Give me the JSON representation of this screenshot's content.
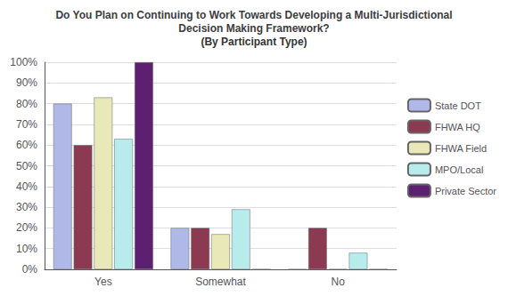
{
  "chart_data": {
    "type": "bar",
    "title": "Do You Plan on Continuing to Work Towards Developing a Multi-Jurisdictional\nDecision Making Framework?",
    "subtitle": "(By Participant Type)",
    "categories": [
      "Yes",
      "Somewhat",
      "No"
    ],
    "series": [
      {
        "name": "State DOT",
        "color": "#b0b8e8",
        "values": [
          80,
          20,
          0
        ]
      },
      {
        "name": "FHWA HQ",
        "color": "#8b3a52",
        "values": [
          60,
          20,
          20
        ]
      },
      {
        "name": "FHWA Field",
        "color": "#e8e8b8",
        "values": [
          83,
          17,
          0
        ]
      },
      {
        "name": "MPO/Local",
        "color": "#b8ecec",
        "values": [
          63,
          29,
          8
        ]
      },
      {
        "name": "Private Sector",
        "color": "#5c2070",
        "values": [
          100,
          0,
          0
        ]
      }
    ],
    "ylim": [
      0,
      100
    ],
    "yticks": [
      {
        "value": 0,
        "label": "0%"
      },
      {
        "value": 10,
        "label": "10%"
      },
      {
        "value": 20,
        "label": "20%"
      },
      {
        "value": 30,
        "label": "30%"
      },
      {
        "value": 40,
        "label": "40%"
      },
      {
        "value": 50,
        "label": "50%"
      },
      {
        "value": 60,
        "label": "60%"
      },
      {
        "value": 70,
        "label": "70%"
      },
      {
        "value": 80,
        "label": "80%"
      },
      {
        "value": 90,
        "label": "90%"
      },
      {
        "value": 100,
        "label": "100%"
      }
    ],
    "grid": true,
    "legend": "right"
  }
}
